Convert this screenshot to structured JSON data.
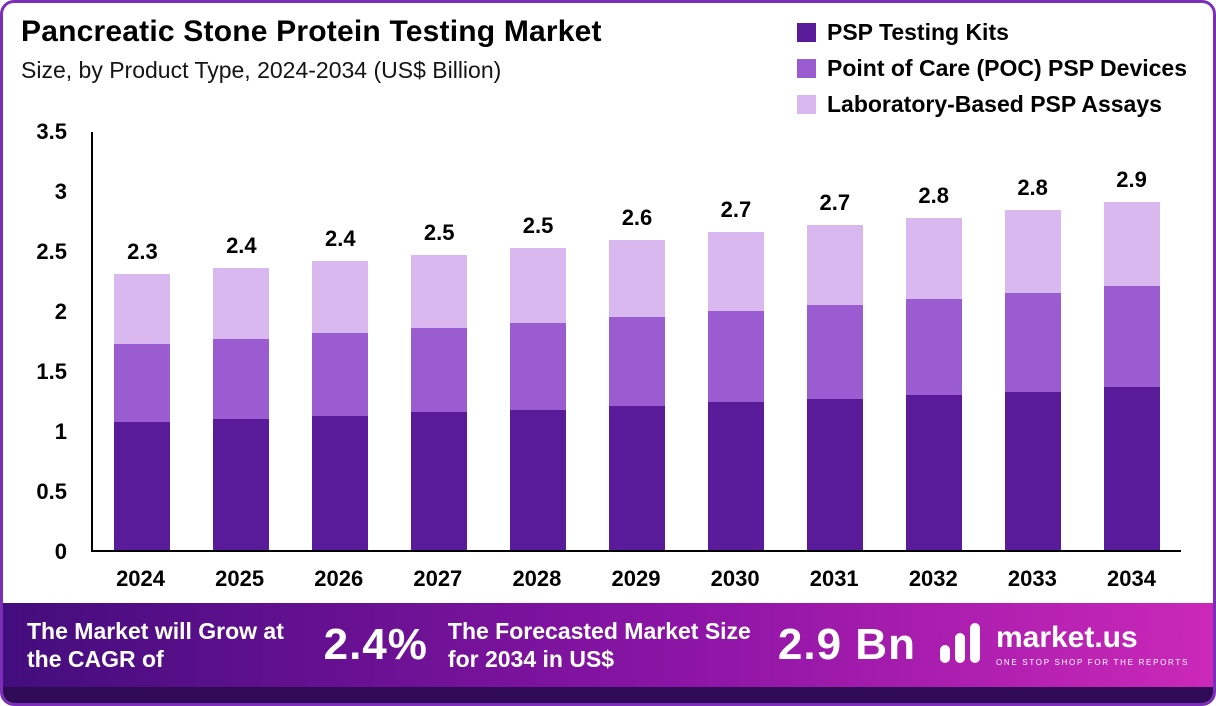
{
  "header": {
    "title": "Pancreatic Stone Protein Testing Market",
    "subtitle": "Size, by Product Type, 2024-2034 (US$ Billion)"
  },
  "chart_data": {
    "type": "bar",
    "stacked": true,
    "title": "Pancreatic Stone Protein Testing Market",
    "subtitle": "Size, by Product Type, 2024-2034 (US$ Billion)",
    "unit": "US$ Billion",
    "categories": [
      "2024",
      "2025",
      "2026",
      "2027",
      "2028",
      "2029",
      "2030",
      "2031",
      "2032",
      "2033",
      "2034"
    ],
    "series": [
      {
        "name": "PSP Testing Kits",
        "color": "#5a1b9a",
        "values": [
          1.07,
          1.09,
          1.12,
          1.15,
          1.17,
          1.2,
          1.23,
          1.26,
          1.29,
          1.32,
          1.36
        ]
      },
      {
        "name": "Point of Care (POC) PSP Devices",
        "color": "#9a5cd0",
        "values": [
          0.65,
          0.67,
          0.69,
          0.7,
          0.72,
          0.74,
          0.76,
          0.78,
          0.8,
          0.82,
          0.84
        ]
      },
      {
        "name": "Laboratory-Based PSP Assays",
        "color": "#d9b8f0",
        "values": [
          0.58,
          0.59,
          0.6,
          0.61,
          0.63,
          0.64,
          0.66,
          0.67,
          0.68,
          0.69,
          0.7
        ]
      }
    ],
    "total_labels": [
      "2.3",
      "2.4",
      "2.4",
      "2.5",
      "2.5",
      "2.6",
      "2.7",
      "2.7",
      "2.8",
      "2.8",
      "2.9"
    ],
    "ylim": [
      0,
      3.5
    ],
    "ytick_labels": [
      "0",
      "0.5",
      "1",
      "1.5",
      "2",
      "2.5",
      "3",
      "3.5"
    ],
    "grid": false,
    "legend_position": "top-right",
    "xlabel": "",
    "ylabel": ""
  },
  "footer": {
    "cagr_label": "The Market will Grow at the CAGR of",
    "cagr_value": "2.4%",
    "forecast_label": "The Forecasted Market Size for 2034 in US$",
    "forecast_value": "2.9 Bn",
    "brand": {
      "name": "market.us",
      "tagline": "ONE STOP SHOP FOR THE REPORTS"
    }
  },
  "colors": {
    "frame_border": "#7b2fb8",
    "series_dark": "#5a1b9a",
    "series_mid": "#9a5cd0",
    "series_light": "#d9b8f0",
    "banner_gradient_start": "#430d7d",
    "banner_gradient_end": "#cb28b8",
    "bottom_strip": "#2e0a57",
    "axis": "#000000",
    "text": "#000000",
    "banner_text": "#ffffff"
  }
}
